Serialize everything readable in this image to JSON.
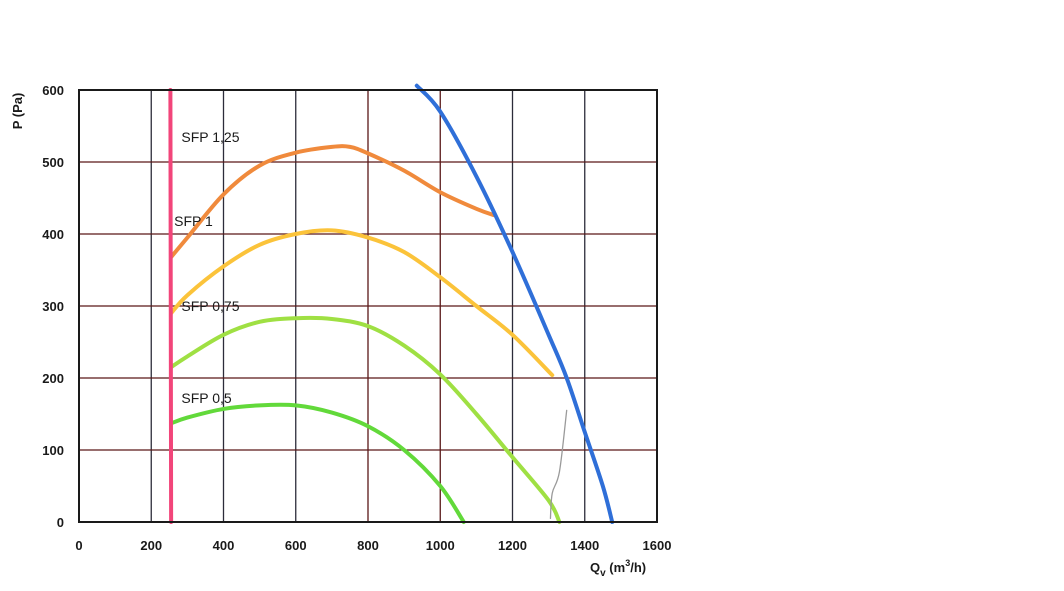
{
  "chart_data": {
    "type": "line",
    "title": "",
    "xlabel": {
      "main": "Q",
      "sub": "v",
      "unit_pre": " (m",
      "sup": "3",
      "unit_post": "/h)"
    },
    "ylabel": "P (Pa)",
    "xlim": [
      0,
      1600
    ],
    "ylim": [
      0,
      600
    ],
    "x_ticks": [
      "0",
      "200",
      "400",
      "600",
      "800",
      "1000",
      "1200",
      "1400",
      "1600"
    ],
    "y_ticks": [
      "0",
      "100",
      "200",
      "300",
      "400",
      "500",
      "600"
    ],
    "grid": true,
    "grid_colors": {
      "dark": "#2c2c3a",
      "red": "#5a1818"
    },
    "series": [
      {
        "name": "SFP 1,25",
        "color": "#f08a3c",
        "label_at": [
          300,
          535
        ],
        "points": [
          [
            255,
            368
          ],
          [
            300,
            395
          ],
          [
            400,
            455
          ],
          [
            500,
            495
          ],
          [
            600,
            513
          ],
          [
            700,
            521
          ],
          [
            750,
            521
          ],
          [
            800,
            512
          ],
          [
            900,
            488
          ],
          [
            1000,
            458
          ],
          [
            1100,
            435
          ],
          [
            1150,
            426
          ]
        ]
      },
      {
        "name": "SFP 1",
        "color": "#fbc33a",
        "label_at": [
          280,
          418
        ],
        "points": [
          [
            255,
            290
          ],
          [
            300,
            315
          ],
          [
            400,
            355
          ],
          [
            500,
            385
          ],
          [
            600,
            400
          ],
          [
            700,
            405
          ],
          [
            800,
            395
          ],
          [
            900,
            375
          ],
          [
            1000,
            340
          ],
          [
            1100,
            300
          ],
          [
            1200,
            260
          ],
          [
            1310,
            204
          ]
        ]
      },
      {
        "name": "SFP 0,75",
        "color": "#9fe043",
        "label_at": [
          300,
          300
        ],
        "points": [
          [
            255,
            215
          ],
          [
            300,
            230
          ],
          [
            400,
            260
          ],
          [
            500,
            278
          ],
          [
            600,
            283
          ],
          [
            700,
            282
          ],
          [
            800,
            272
          ],
          [
            900,
            245
          ],
          [
            1000,
            205
          ],
          [
            1100,
            150
          ],
          [
            1200,
            90
          ],
          [
            1300,
            30
          ],
          [
            1330,
            0
          ]
        ]
      },
      {
        "name": "SFP 0,5",
        "color": "#62d93a",
        "label_at": [
          300,
          172
        ],
        "points": [
          [
            255,
            137
          ],
          [
            300,
            145
          ],
          [
            400,
            157
          ],
          [
            500,
            162
          ],
          [
            600,
            162
          ],
          [
            700,
            152
          ],
          [
            800,
            133
          ],
          [
            900,
            100
          ],
          [
            1000,
            50
          ],
          [
            1065,
            0
          ]
        ]
      }
    ],
    "reference_lines": [
      {
        "name": "min-flow-line",
        "color": "#f2457a",
        "points": [
          [
            253,
            600
          ],
          [
            255,
            0
          ]
        ]
      },
      {
        "name": "max-fan-curve",
        "color": "#2f6fd8",
        "points": [
          [
            935,
            606
          ],
          [
            1000,
            570
          ],
          [
            1100,
            480
          ],
          [
            1200,
            375
          ],
          [
            1300,
            260
          ],
          [
            1350,
            200
          ],
          [
            1400,
            125
          ],
          [
            1450,
            50
          ],
          [
            1476,
            0
          ]
        ]
      },
      {
        "name": "grey-curve",
        "color": "#9a9a9a",
        "points": [
          [
            1350,
            155
          ],
          [
            1330,
            70
          ],
          [
            1310,
            40
          ],
          [
            1305,
            5
          ]
        ]
      }
    ]
  }
}
